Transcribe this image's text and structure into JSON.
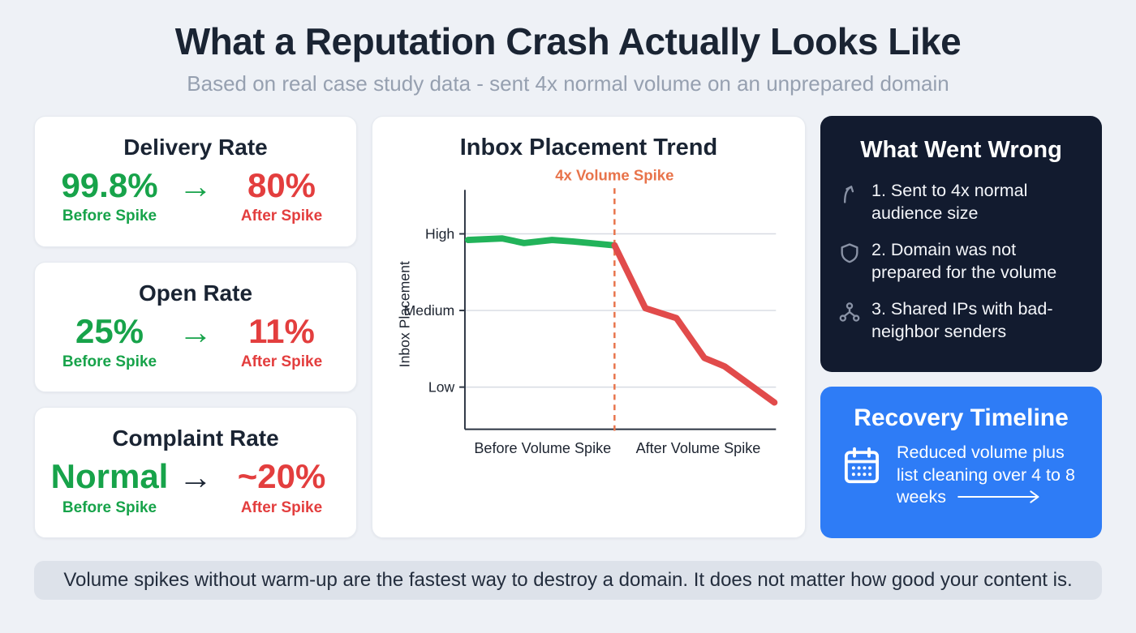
{
  "page": {
    "title": "What a Reputation Crash Actually Looks Like",
    "subtitle": "Based on real case study data - sent 4x normal volume on an unprepared domain",
    "footer": "Volume spikes without warm-up are the fastest way to destroy a domain. It does not matter how good your content is."
  },
  "colors": {
    "green": "#17a34a",
    "red": "#e33e3e",
    "orange": "#e8734a",
    "navy": "#121b2f",
    "blue": "#2e7cf6"
  },
  "metrics": [
    {
      "title": "Delivery Rate",
      "before": "99.8%",
      "after": "80%",
      "before_label": "Before Spike",
      "after_label": "After Spike",
      "arrow": "→",
      "arrow_color": "#17a34a"
    },
    {
      "title": "Open Rate",
      "before": "25%",
      "after": "11%",
      "before_label": "Before Spike",
      "after_label": "After Spike",
      "arrow": "→",
      "arrow_color": "#17a34a"
    },
    {
      "title": "Complaint Rate",
      "before": "Normal",
      "after": "~20%",
      "before_label": "Before Spike",
      "after_label": "After Spike",
      "arrow": "→",
      "arrow_color": "#1a2433"
    }
  ],
  "wrong": {
    "title": "What Went Wrong",
    "items": [
      {
        "icon": "trend-up-icon",
        "text": "1. Sent to 4x normal audience size"
      },
      {
        "icon": "shield-icon",
        "text": "2. Domain was not prepared for the volume"
      },
      {
        "icon": "network-icon",
        "text": "3. Shared IPs with bad-neighbor senders"
      }
    ]
  },
  "recovery": {
    "title": "Recovery Timeline",
    "icon": "calendar-icon",
    "text": "Reduced volume plus list cleaning over 4 to 8 weeks",
    "arrow_icon": "long-arrow-right-icon"
  },
  "chart_data": {
    "type": "line",
    "title": "Inbox Placement Trend",
    "ylabel": "Inbox Placement",
    "x_axis_labels": [
      "Before Volume Spike",
      "After Volume Spike"
    ],
    "y_ticks": [
      {
        "label": "High",
        "value": 3
      },
      {
        "label": "Medium",
        "value": 2
      },
      {
        "label": "Low",
        "value": 1
      }
    ],
    "xlim": [
      0,
      10
    ],
    "ylim": [
      0.45,
      3.45
    ],
    "grid": true,
    "annotation": {
      "label": "4x Volume Spike",
      "x": 4.81,
      "color": "#e8734a"
    },
    "series": [
      {
        "name": "before-spike",
        "color": "#22b35a",
        "points": [
          [
            0.1,
            2.92
          ],
          [
            1.2,
            2.94
          ],
          [
            1.9,
            2.88
          ],
          [
            2.8,
            2.92
          ],
          [
            3.5,
            2.9
          ],
          [
            4.81,
            2.85
          ]
        ]
      },
      {
        "name": "after-spike",
        "color": "#e14b4b",
        "points": [
          [
            4.81,
            2.85
          ],
          [
            5.8,
            2.03
          ],
          [
            6.8,
            1.9
          ],
          [
            7.7,
            1.38
          ],
          [
            8.35,
            1.27
          ],
          [
            9.95,
            0.8
          ]
        ]
      }
    ]
  }
}
